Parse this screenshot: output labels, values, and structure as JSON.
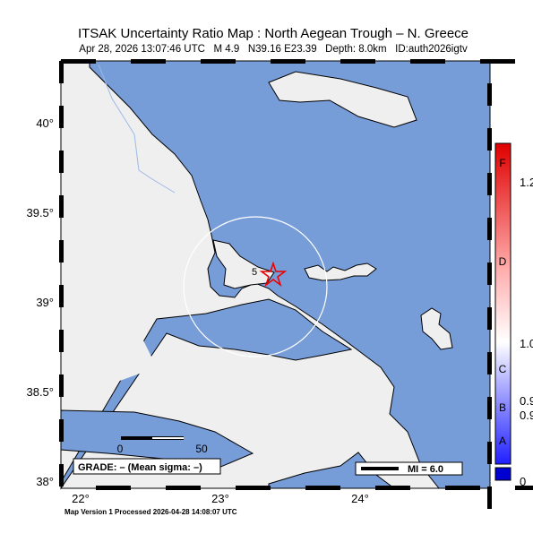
{
  "header": {
    "title": "ITSAK Uncertainty Ratio Map : North Aegean Trough – N. Greece",
    "subtitle": "Apr 28, 2026 13:07:46 UTC   M 4.9   N39.16 E23.39   Depth: 8.0km   ID:auth2026igtv"
  },
  "map": {
    "lat_labels": [
      "40°",
      "39.5°",
      "39°",
      "38.5°",
      "38°"
    ],
    "lon_labels": [
      "22°",
      "23°",
      "24°"
    ],
    "contour_label": "5",
    "scale_labels": [
      "0",
      "50"
    ],
    "grade": "GRADE: – (Mean sigma: –)",
    "mi": "MI = 6.0"
  },
  "colorbar": {
    "letters": [
      "F",
      "D",
      "C",
      "B",
      "A"
    ],
    "labels": [
      "1.2",
      "1.0",
      "0.9",
      "0.9",
      "0"
    ]
  },
  "footer": "Map Version 1 Processed 2026-04-28 14:08:07 UTC"
}
